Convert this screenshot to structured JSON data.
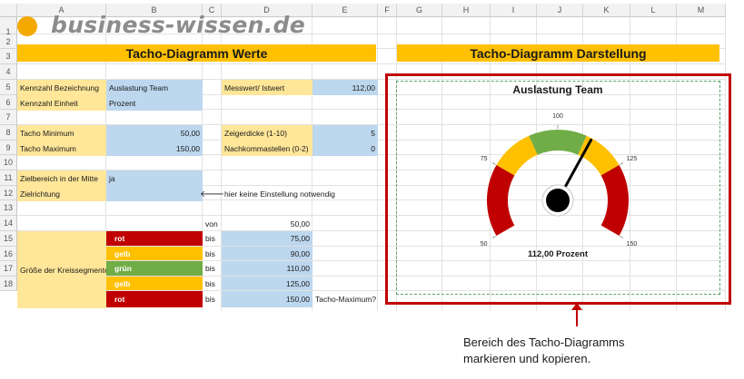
{
  "columns": [
    "A",
    "B",
    "C",
    "D",
    "E",
    "F",
    "G",
    "H",
    "I",
    "J",
    "K",
    "L",
    "M"
  ],
  "rows": [
    "1",
    "2",
    "3",
    "4",
    "5",
    "6",
    "7",
    "8",
    "9",
    "10",
    "11",
    "12",
    "13",
    "14",
    "15",
    "16",
    "17",
    "18"
  ],
  "logo": {
    "text": "business-wissen.de"
  },
  "left_title": "Tacho-Diagramm Werte",
  "right_title": "Tacho-Diagramm Darstellung",
  "table": {
    "kennzahl_label": "Kennzahl Bezeichnung",
    "kennzahl_value": "Auslastung Team",
    "einheit_label": "Kennzahl Einheit",
    "einheit_value": "Prozent",
    "messwert_label": "Messwert/ Istwert",
    "messwert_value": "112,00",
    "min_label": "Tacho Minimum",
    "min_value": "50,00",
    "max_label": "Tacho Maximum",
    "max_value": "150,00",
    "zeiger_label": "Zeigerdicke (1-10)",
    "zeiger_value": "5",
    "nachkomma_label": "Nachkommastellen (0-2)",
    "nachkomma_value": "0",
    "ziel_label": "Zielbereich in der Mitte",
    "ziel_value": "ja",
    "richtung_label": "Zielrichtung",
    "arrow": "🡐",
    "hint": "hier keine Einstellung notwendig",
    "von_label": "von",
    "von_value": "50,00",
    "segments_label": "Größe der Kreissegmente",
    "bis_label": "bis",
    "tacho_max_note": "Tacho-Maximum?",
    "segments": [
      {
        "name": "rot",
        "bis": "75,00",
        "color": "#c00000"
      },
      {
        "name": "gelb",
        "bis": "90,00",
        "color": "#ffc000"
      },
      {
        "name": "grün",
        "bis": "110,00",
        "color": "#70ad47"
      },
      {
        "name": "gelb",
        "bis": "125,00",
        "color": "#ffc000"
      },
      {
        "name": "rot",
        "bis": "150,00",
        "color": "#c00000"
      }
    ]
  },
  "gauge": {
    "title": "Auslastung Team",
    "readout": "112,00 Prozent",
    "min": 50,
    "max": 150,
    "value": 112,
    "ticks": [
      {
        "value": 50,
        "label": "50"
      },
      {
        "value": 75,
        "label": "75"
      },
      {
        "value": 100,
        "label": "100"
      },
      {
        "value": 125,
        "label": "125"
      },
      {
        "value": 150,
        "label": "150"
      }
    ],
    "bands": [
      {
        "from": 50,
        "to": 75,
        "color": "#c00000"
      },
      {
        "from": 75,
        "to": 90,
        "color": "#ffc000"
      },
      {
        "from": 90,
        "to": 110,
        "color": "#70ad47"
      },
      {
        "from": 110,
        "to": 125,
        "color": "#ffc000"
      },
      {
        "from": 125,
        "to": 150,
        "color": "#c00000"
      }
    ],
    "frame_color": "#c00000",
    "inner_border_color": "#5aa469"
  },
  "annotation": {
    "line1": "Bereich des Tacho-Diagramms",
    "line2": "markieren und kopieren."
  }
}
